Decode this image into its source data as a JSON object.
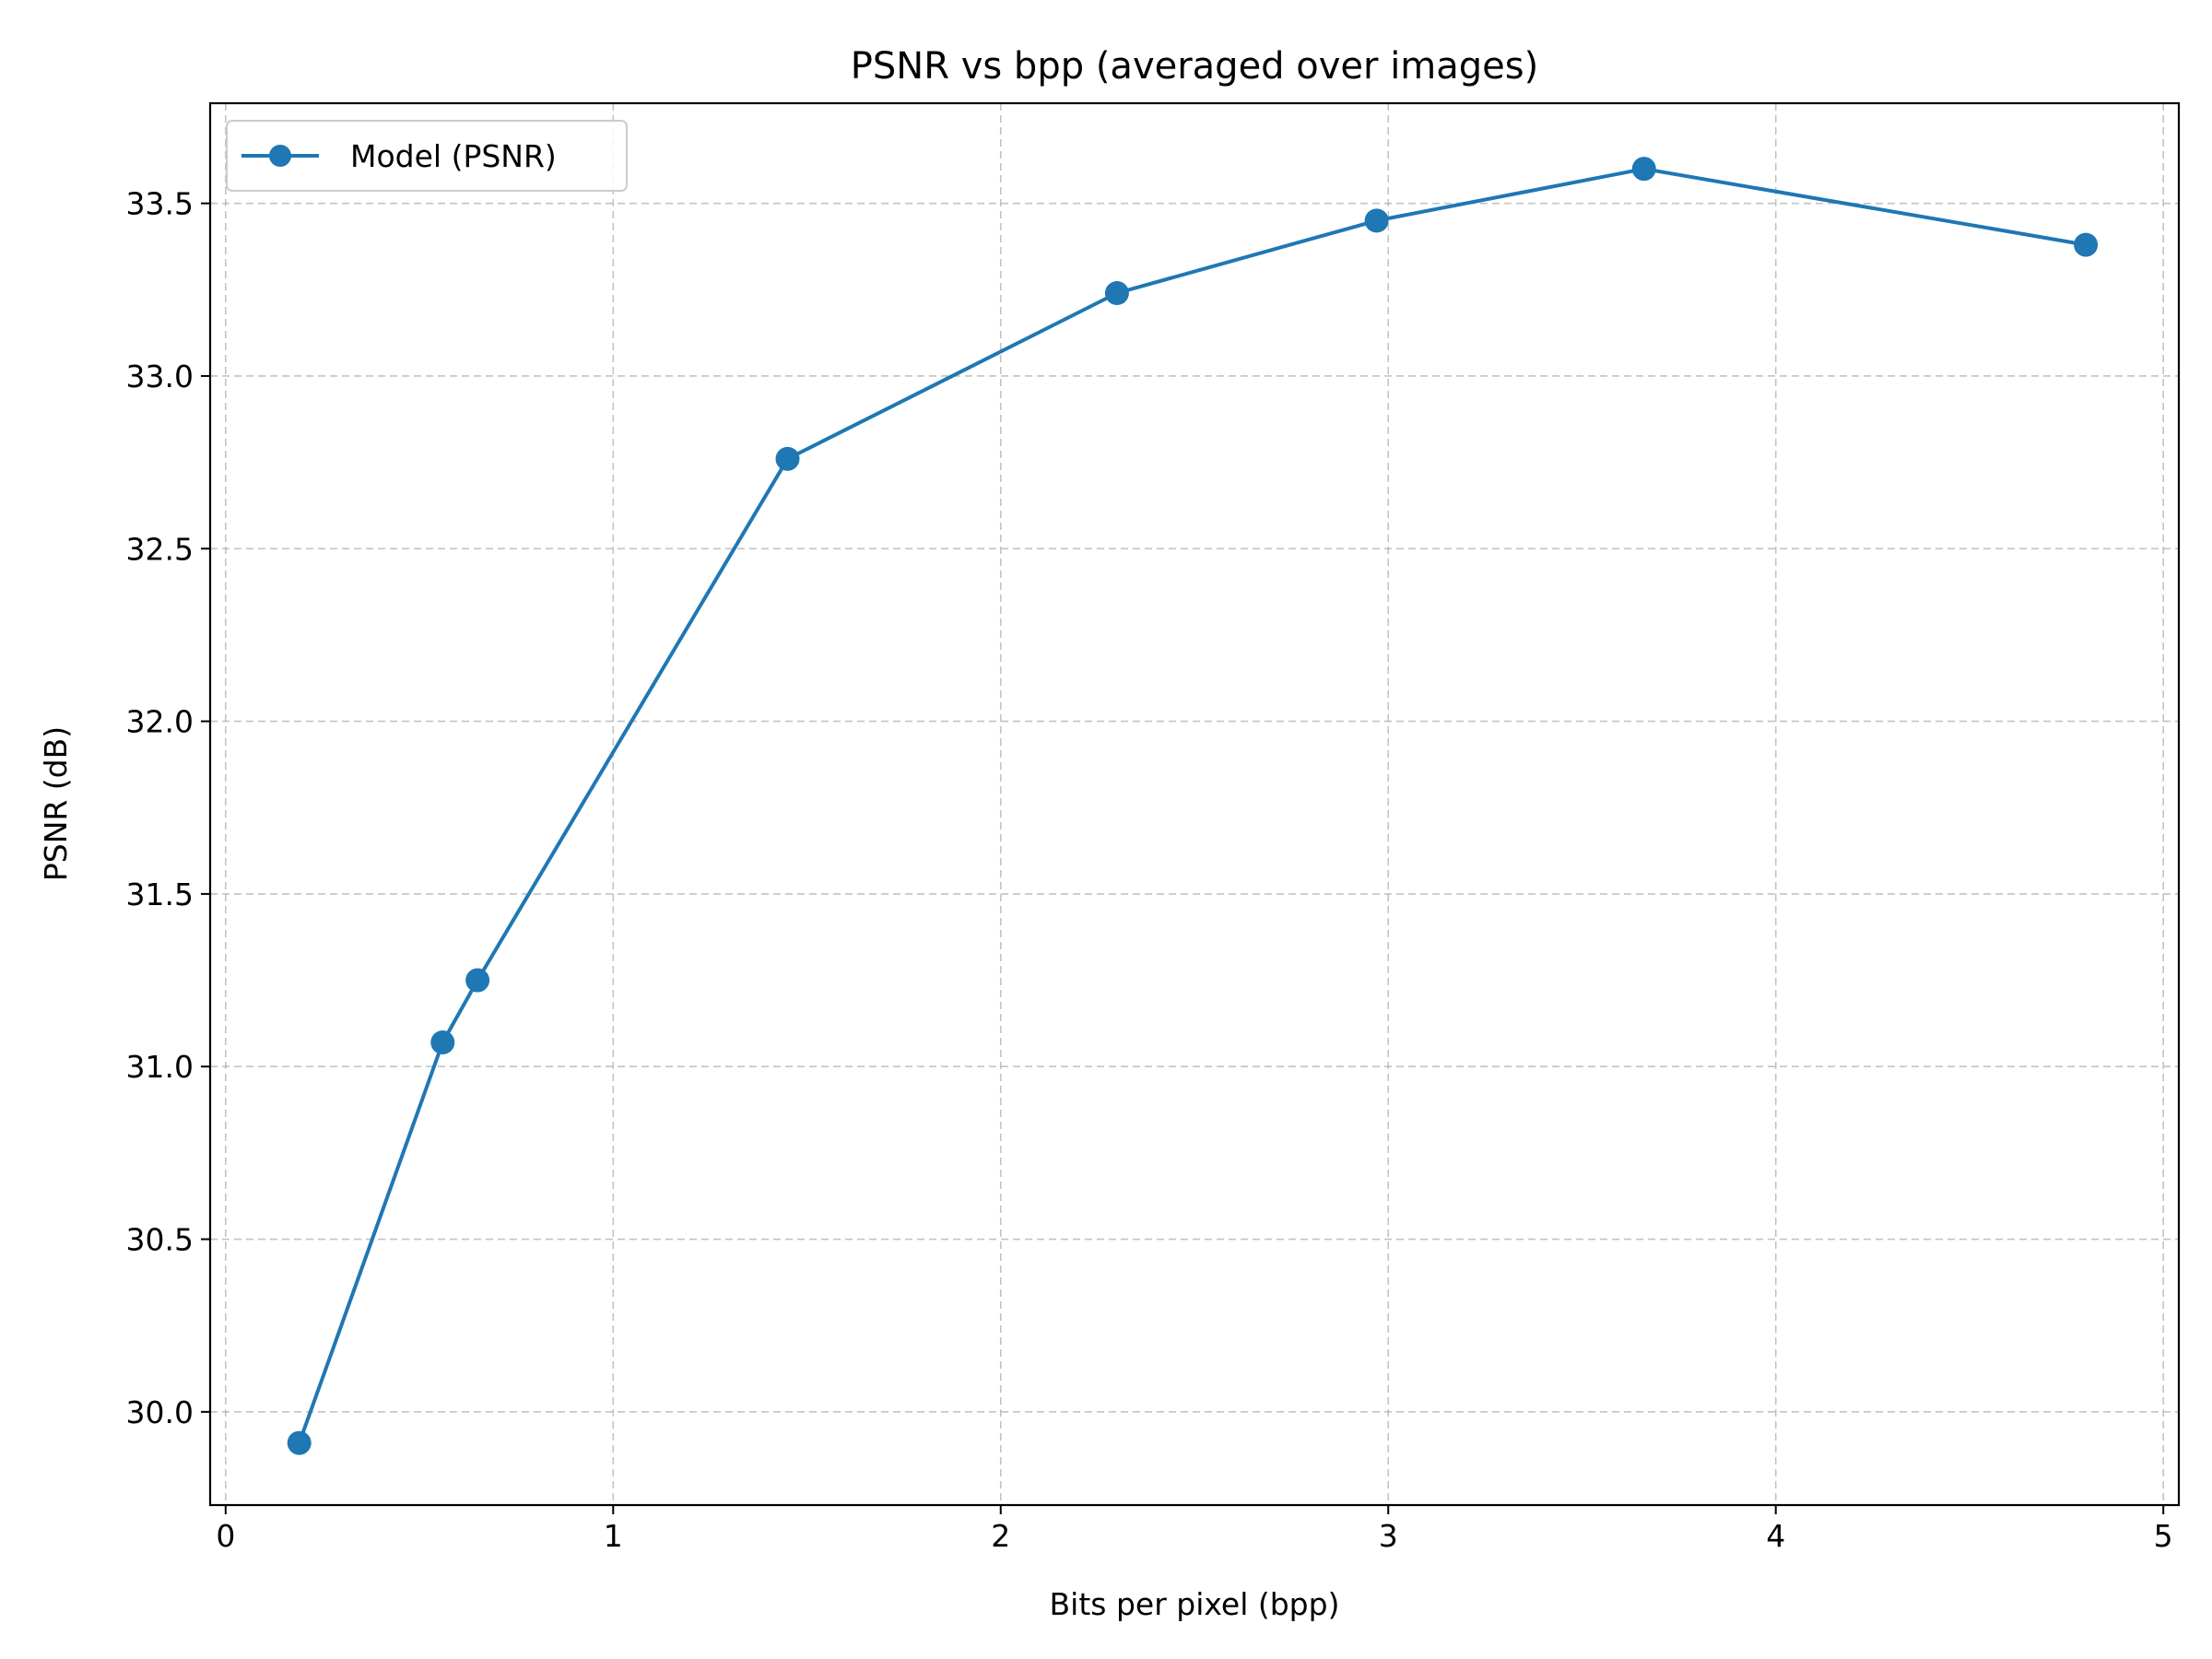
{
  "chart_data": {
    "type": "line",
    "title": "PSNR vs bpp (averaged over images)",
    "xlabel": "Bits per pixel (bpp)",
    "ylabel": "PSNR (dB)",
    "xlim": [
      -0.04,
      5.04
    ],
    "ylim": [
      29.73,
      33.79
    ],
    "xticks": [
      0,
      1,
      2,
      3,
      4,
      5
    ],
    "yticks": [
      30.0,
      30.5,
      31.0,
      31.5,
      32.0,
      32.5,
      33.0,
      33.5
    ],
    "grid": true,
    "legend_position": "top-left",
    "series": [
      {
        "name": "Model (PSNR)",
        "color": "#1f77b4",
        "marker": "circle",
        "x": [
          0.19,
          0.56,
          0.65,
          1.45,
          2.3,
          2.97,
          3.66,
          4.8
        ],
        "y": [
          29.91,
          31.07,
          31.25,
          32.76,
          33.24,
          33.45,
          33.6,
          33.38
        ]
      }
    ]
  }
}
